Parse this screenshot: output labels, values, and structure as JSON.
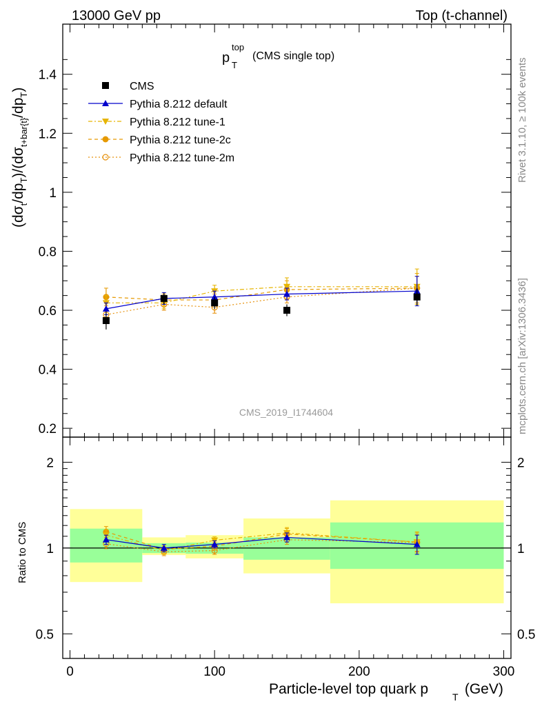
{
  "header": {
    "left": "13000 GeV pp",
    "right": "Top (t-channel)"
  },
  "side_labels": {
    "rivet": "Rivet 3.1.10, ≥ 100k events",
    "mcplots": "mcplots.cern.ch [arXiv:1306.3436]"
  },
  "watermark": "CMS_2019_I1744604",
  "colors": {
    "default": "#0000cc",
    "tune1": "#e6b400",
    "tune2c": "#e69900",
    "tune2m": "#e6900a",
    "band_inner": "#99ff99",
    "band_outer": "#ffff99"
  },
  "chart_data": {
    "type": "line",
    "title_main": "p",
    "title_sup": "top",
    "title_sub": "T",
    "title_suffix": "(CMS single top)",
    "x_bins": [
      [
        0,
        50
      ],
      [
        50,
        80
      ],
      [
        80,
        120
      ],
      [
        120,
        180
      ],
      [
        180,
        300
      ]
    ],
    "x_centers": [
      25,
      65,
      100,
      150,
      240
    ],
    "xlim": [
      -5,
      305
    ],
    "xticks": [
      0,
      100,
      200,
      300
    ],
    "xtick_labels": [
      "0",
      "100",
      "200",
      "300"
    ],
    "xlabel_main": "Particle-level top quark p",
    "xlabel_sub": "T",
    "xlabel_suffix": " (GeV)",
    "top_panel": {
      "ylim": [
        0.17,
        1.57
      ],
      "yticks": [
        0.2,
        0.4,
        0.6,
        0.8,
        1.0,
        1.2,
        1.4
      ],
      "ytick_labels": [
        "0.2",
        "0.4",
        "0.6",
        "0.8",
        "1",
        "1.2",
        "1.4"
      ],
      "ylabel": "(dσ_t/dp_T)/(dσ_t+bar{t}/dp_T)",
      "data": {
        "name": "CMS",
        "values": [
          0.565,
          0.64,
          0.625,
          0.6,
          0.645
        ],
        "errors": [
          0.03,
          0.02,
          0.02,
          0.02,
          0.03
        ]
      },
      "series": [
        {
          "name": "Pythia 8.212 default",
          "values": [
            0.605,
            0.64,
            0.645,
            0.655,
            0.665
          ],
          "errors": [
            0.02,
            0.02,
            0.02,
            0.02,
            0.05
          ]
        },
        {
          "name": "Pythia 8.212 tune-1",
          "values": [
            0.625,
            0.625,
            0.665,
            0.68,
            0.68
          ],
          "errors": [
            0.025,
            0.02,
            0.02,
            0.03,
            0.06
          ]
        },
        {
          "name": "Pythia 8.212 tune-2c",
          "values": [
            0.645,
            0.635,
            0.635,
            0.67,
            0.675
          ],
          "errors": [
            0.03,
            0.02,
            0.02,
            0.03,
            0.05
          ]
        },
        {
          "name": "Pythia 8.212 tune-2m",
          "values": [
            0.585,
            0.62,
            0.61,
            0.645,
            0.675
          ],
          "errors": [
            0.02,
            0.02,
            0.02,
            0.02,
            0.04
          ]
        }
      ]
    },
    "ratio_panel": {
      "ylabel": "Ratio to CMS",
      "scale": "log",
      "ylim": [
        0.41,
        2.45
      ],
      "yticks": [
        0.5,
        1,
        2
      ],
      "ytick_labels": [
        "0.5",
        "1",
        "2"
      ],
      "band_inner": [
        [
          0.89,
          1.17
        ],
        [
          0.96,
          1.04
        ],
        [
          0.955,
          1.045
        ],
        [
          0.91,
          1.09
        ],
        [
          0.845,
          1.23
        ]
      ],
      "band_outer": [
        [
          0.76,
          1.37
        ],
        [
          0.945,
          1.09
        ],
        [
          0.92,
          1.11
        ],
        [
          0.815,
          1.27
        ],
        [
          0.64,
          1.47
        ]
      ],
      "series": [
        {
          "name": "Pythia 8.212 default",
          "values": [
            1.07,
            1.0,
            1.03,
            1.09,
            1.03
          ],
          "errors": [
            0.04,
            0.03,
            0.03,
            0.04,
            0.08
          ]
        },
        {
          "name": "Pythia 8.212 tune-1",
          "values": [
            1.11,
            0.98,
            1.065,
            1.13,
            1.05
          ],
          "errors": [
            0.05,
            0.03,
            0.03,
            0.05,
            0.09
          ]
        },
        {
          "name": "Pythia 8.212 tune-2c",
          "values": [
            1.14,
            0.99,
            1.015,
            1.12,
            1.05
          ],
          "errors": [
            0.05,
            0.03,
            0.03,
            0.05,
            0.08
          ]
        },
        {
          "name": "Pythia 8.212 tune-2m",
          "values": [
            1.035,
            0.97,
            0.98,
            1.07,
            1.045
          ],
          "errors": [
            0.04,
            0.03,
            0.03,
            0.04,
            0.07
          ]
        }
      ]
    }
  }
}
